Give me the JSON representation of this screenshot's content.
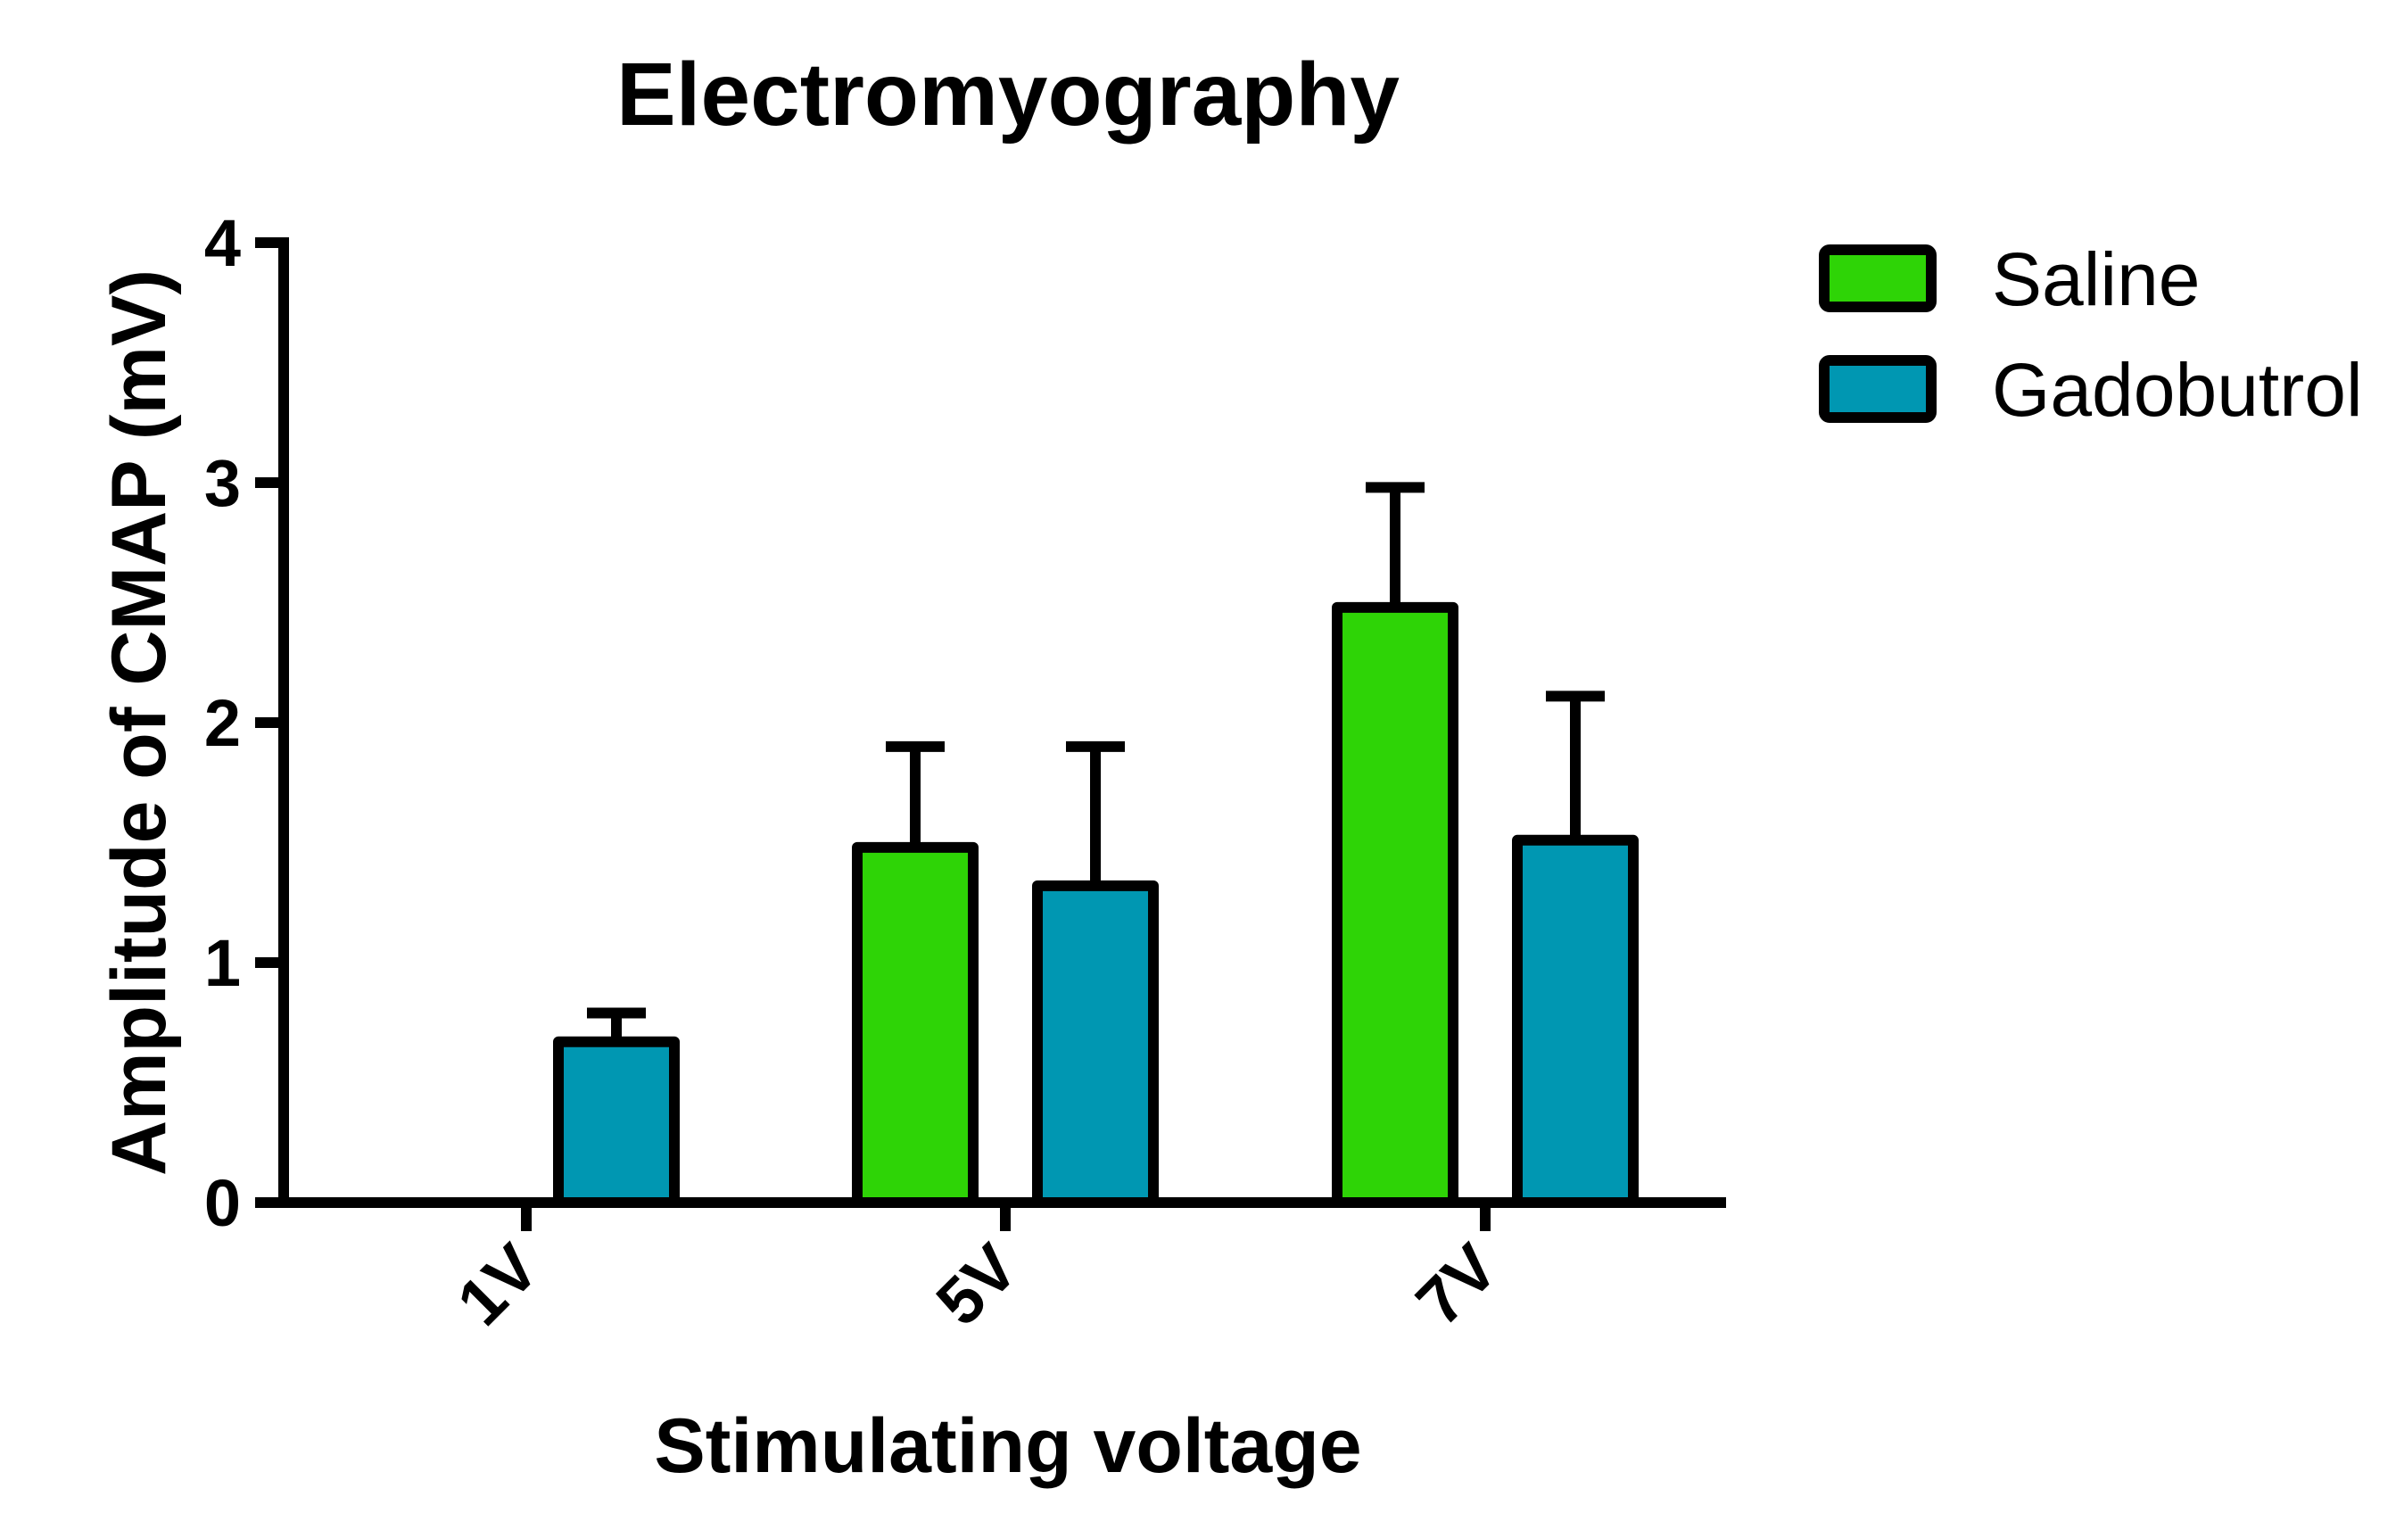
{
  "chart_data": {
    "type": "bar",
    "title": "Electromyography",
    "xlabel": "Stimulating voltage",
    "ylabel": "Amplitude of CMAP (mV)",
    "categories": [
      "1V",
      "5V",
      "7V"
    ],
    "ylim": [
      0,
      4
    ],
    "yticks": [
      0,
      1,
      2,
      3,
      4
    ],
    "ytick_labels": [
      "0",
      "1",
      "2",
      "3",
      "4"
    ],
    "grid": false,
    "legend_position": "top-right",
    "series": [
      {
        "name": "Saline",
        "color": "#2ed406",
        "values": [
          0,
          1.48,
          2.48
        ],
        "errors": [
          0,
          0.42,
          0.5
        ]
      },
      {
        "name": "Gadobutrol",
        "color": "#0097b2",
        "values": [
          0.67,
          1.32,
          1.51
        ],
        "errors": [
          0.12,
          0.58,
          0.6
        ]
      }
    ]
  }
}
